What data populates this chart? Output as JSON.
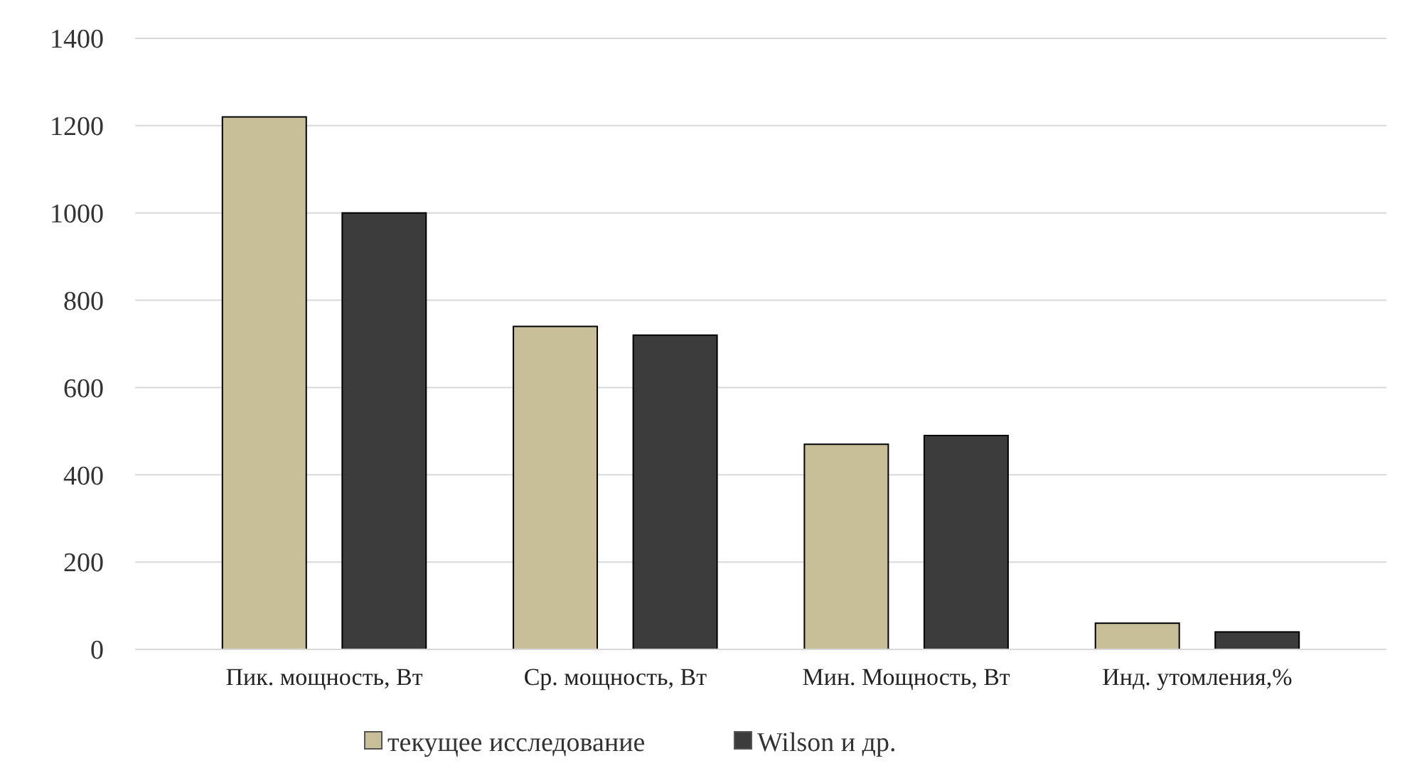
{
  "chart_data": {
    "type": "bar",
    "categories": [
      "Пик. мощность, Вт",
      "Ср. мощность, Вт",
      "Мин. Мощность, Вт",
      "Инд. утомления,%"
    ],
    "series": [
      {
        "name": "текущее исследование",
        "color": "#c8bf98",
        "values": [
          1220,
          740,
          470,
          60
        ]
      },
      {
        "name": "Wilson и др.",
        "color": "#3c3c3c",
        "values": [
          1000,
          720,
          490,
          40
        ]
      }
    ],
    "ylim": [
      0,
      1400
    ],
    "yticks": [
      0,
      200,
      400,
      600,
      800,
      1000,
      1200,
      1400
    ],
    "grid": "y",
    "legend": "bottom"
  }
}
